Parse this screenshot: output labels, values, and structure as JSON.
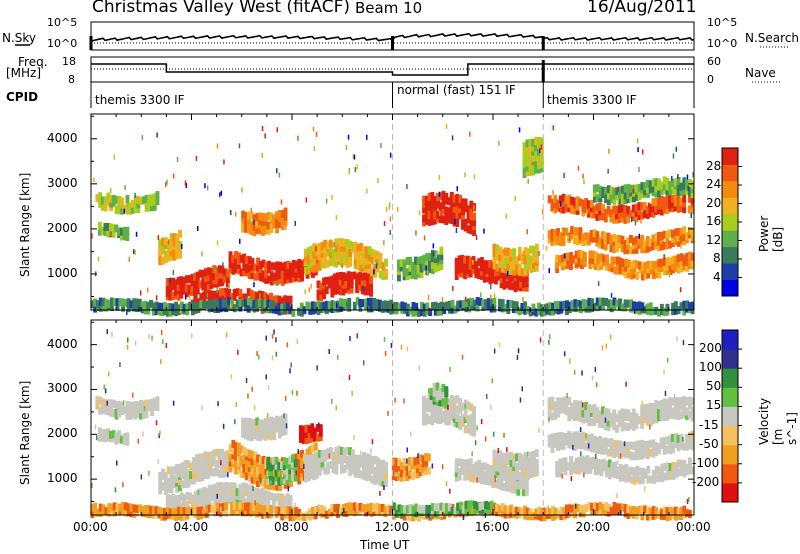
{
  "header": {
    "title": "Christmas Valley West (fitACF)",
    "beam": "Beam 10",
    "date": "16/Aug/2011"
  },
  "top_panels": {
    "nsky_label": "N.Sky",
    "nsky_ticks": [
      "10^5",
      "10^0"
    ],
    "nsearch_label": "N.Search",
    "nsearch_ticks": [
      "10^5",
      "10^0"
    ],
    "freq_label_1": "Freq.",
    "freq_label_2": "[MHz]",
    "freq_ticks": [
      "18",
      "8"
    ],
    "nave_label": "Nave",
    "nave_ticks": [
      "60",
      "0"
    ],
    "cpid_label": "CPID",
    "cpid_segments": [
      {
        "text": "themis 3300 IF",
        "start_hour": 0
      },
      {
        "text": "normal (fast) 151 IF",
        "start_hour": 12
      },
      {
        "text": "themis 3300 IF",
        "start_hour": 18
      }
    ]
  },
  "colors": {
    "power": [
      "#0000e6",
      "#1f3fa8",
      "#3a7a5a",
      "#5db04a",
      "#a8cc20",
      "#f0b020",
      "#f58a10",
      "#f05a10",
      "#e02010"
    ],
    "velocity": [
      "#e01010",
      "#f05a10",
      "#f0a020",
      "#f5c060",
      "#c8c8c0",
      "#60c040",
      "#309040",
      "#303090",
      "#2020c0"
    ],
    "ground_scatter": "#c8c8c0"
  },
  "chart_data": [
    {
      "type": "heatmap",
      "name_panel": "power",
      "ylabel": "Slant Range [km]",
      "yticks": [
        1000,
        2000,
        3000,
        4000
      ],
      "ylim": [
        200,
        4550
      ],
      "xlim": [
        0,
        24
      ],
      "colorbar_label": "Power [dB]",
      "colorbar_ticks": [
        "4",
        "8",
        "12",
        "16",
        "20",
        "24",
        "28"
      ],
      "features": [
        {
          "t0": 0.2,
          "t1": 2.7,
          "r": 2700,
          "w": 350,
          "val": 4
        },
        {
          "t0": 0.3,
          "t1": 1.5,
          "r": 2000,
          "w": 250,
          "val": 3
        },
        {
          "t0": 2.7,
          "t1": 3.6,
          "r": 1700,
          "w": 500,
          "val": 5
        },
        {
          "t0": 3.0,
          "t1": 5.5,
          "r": 850,
          "w": 450,
          "val": 8
        },
        {
          "t0": 4.0,
          "t1": 8.0,
          "r": 450,
          "w": 300,
          "val": 8
        },
        {
          "t0": 5.5,
          "t1": 9.0,
          "r": 1200,
          "w": 400,
          "val": 8
        },
        {
          "t0": 6.0,
          "t1": 7.8,
          "r": 2300,
          "w": 400,
          "val": 6
        },
        {
          "t0": 8.5,
          "t1": 11.8,
          "r": 1350,
          "w": 500,
          "val": 5
        },
        {
          "t0": 9.0,
          "t1": 11.2,
          "r": 700,
          "w": 450,
          "val": 8
        },
        {
          "t0": 12.2,
          "t1": 14.0,
          "r": 1300,
          "w": 450,
          "val": 3
        },
        {
          "t0": 13.2,
          "t1": 15.3,
          "r": 2300,
          "w": 650,
          "val": 8
        },
        {
          "t0": 14.5,
          "t1": 17.4,
          "r": 1050,
          "w": 450,
          "val": 8
        },
        {
          "t0": 16.0,
          "t1": 17.8,
          "r": 1500,
          "w": 500,
          "val": 5
        },
        {
          "t0": 17.2,
          "t1": 18.0,
          "r": 3400,
          "w": 800,
          "val": 4
        },
        {
          "t0": 18.2,
          "t1": 24.0,
          "r": 2500,
          "w": 350,
          "val": 7
        },
        {
          "t0": 18.2,
          "t1": 24.0,
          "r": 1800,
          "w": 300,
          "val": 6
        },
        {
          "t0": 18.5,
          "t1": 24.0,
          "r": 1250,
          "w": 350,
          "val": 6
        },
        {
          "t0": 20.0,
          "t1": 24.0,
          "r": 2900,
          "w": 300,
          "val": 3
        },
        {
          "t0": 0.0,
          "t1": 24.0,
          "r": 320,
          "w": 150,
          "val": 2
        }
      ]
    },
    {
      "type": "heatmap",
      "name_panel": "velocity",
      "ylabel": "Slant Range [km]",
      "yticks": [
        1000,
        2000,
        3000,
        4000
      ],
      "ylim": [
        200,
        4550
      ],
      "xlim": [
        0,
        24
      ],
      "colorbar_label": "Velocity [m s^-1]",
      "colorbar_ticks": [
        "-200",
        "-100",
        "-50",
        "-15",
        "15",
        "50",
        "100",
        "200"
      ],
      "features": [
        {
          "t0": 0.2,
          "t1": 2.7,
          "r": 2700,
          "w": 350,
          "val": 4
        },
        {
          "t0": 0.3,
          "t1": 1.5,
          "r": 2000,
          "w": 250,
          "val": 4
        },
        {
          "t0": 2.7,
          "t1": 5.5,
          "r": 1200,
          "w": 600,
          "val": 4
        },
        {
          "t0": 3.0,
          "t1": 8.0,
          "r": 600,
          "w": 400,
          "val": 4
        },
        {
          "t0": 5.5,
          "t1": 9.0,
          "r": 1400,
          "w": 700,
          "val": 2
        },
        {
          "t0": 7.0,
          "t1": 8.2,
          "r": 1400,
          "w": 500,
          "val": 5
        },
        {
          "t0": 8.3,
          "t1": 9.2,
          "r": 2000,
          "w": 300,
          "val": 0
        },
        {
          "t0": 6.0,
          "t1": 7.8,
          "r": 2300,
          "w": 400,
          "val": 4
        },
        {
          "t0": 8.5,
          "t1": 11.8,
          "r": 1300,
          "w": 500,
          "val": 4
        },
        {
          "t0": 12.0,
          "t1": 13.5,
          "r": 1400,
          "w": 400,
          "val": 2
        },
        {
          "t0": 13.2,
          "t1": 15.3,
          "r": 2400,
          "w": 700,
          "val": 4
        },
        {
          "t0": 13.5,
          "t1": 14.2,
          "r": 2800,
          "w": 400,
          "val": 5
        },
        {
          "t0": 14.5,
          "t1": 17.4,
          "r": 1100,
          "w": 450,
          "val": 4
        },
        {
          "t0": 16.0,
          "t1": 17.8,
          "r": 1500,
          "w": 500,
          "val": 4
        },
        {
          "t0": 18.2,
          "t1": 24.0,
          "r": 2500,
          "w": 400,
          "val": 4
        },
        {
          "t0": 18.2,
          "t1": 24.0,
          "r": 1800,
          "w": 300,
          "val": 4
        },
        {
          "t0": 18.5,
          "t1": 24.0,
          "r": 1250,
          "w": 350,
          "val": 4
        },
        {
          "t0": 0.0,
          "t1": 24.0,
          "r": 330,
          "w": 150,
          "val": 2
        },
        {
          "t0": 12.0,
          "t1": 16.0,
          "r": 380,
          "w": 100,
          "val": 5
        }
      ]
    }
  ],
  "x_axis": {
    "ticks": [
      "00:00",
      "04:00",
      "08:00",
      "12:00",
      "16:00",
      "20:00",
      "00:00"
    ],
    "label": "Time UT"
  }
}
